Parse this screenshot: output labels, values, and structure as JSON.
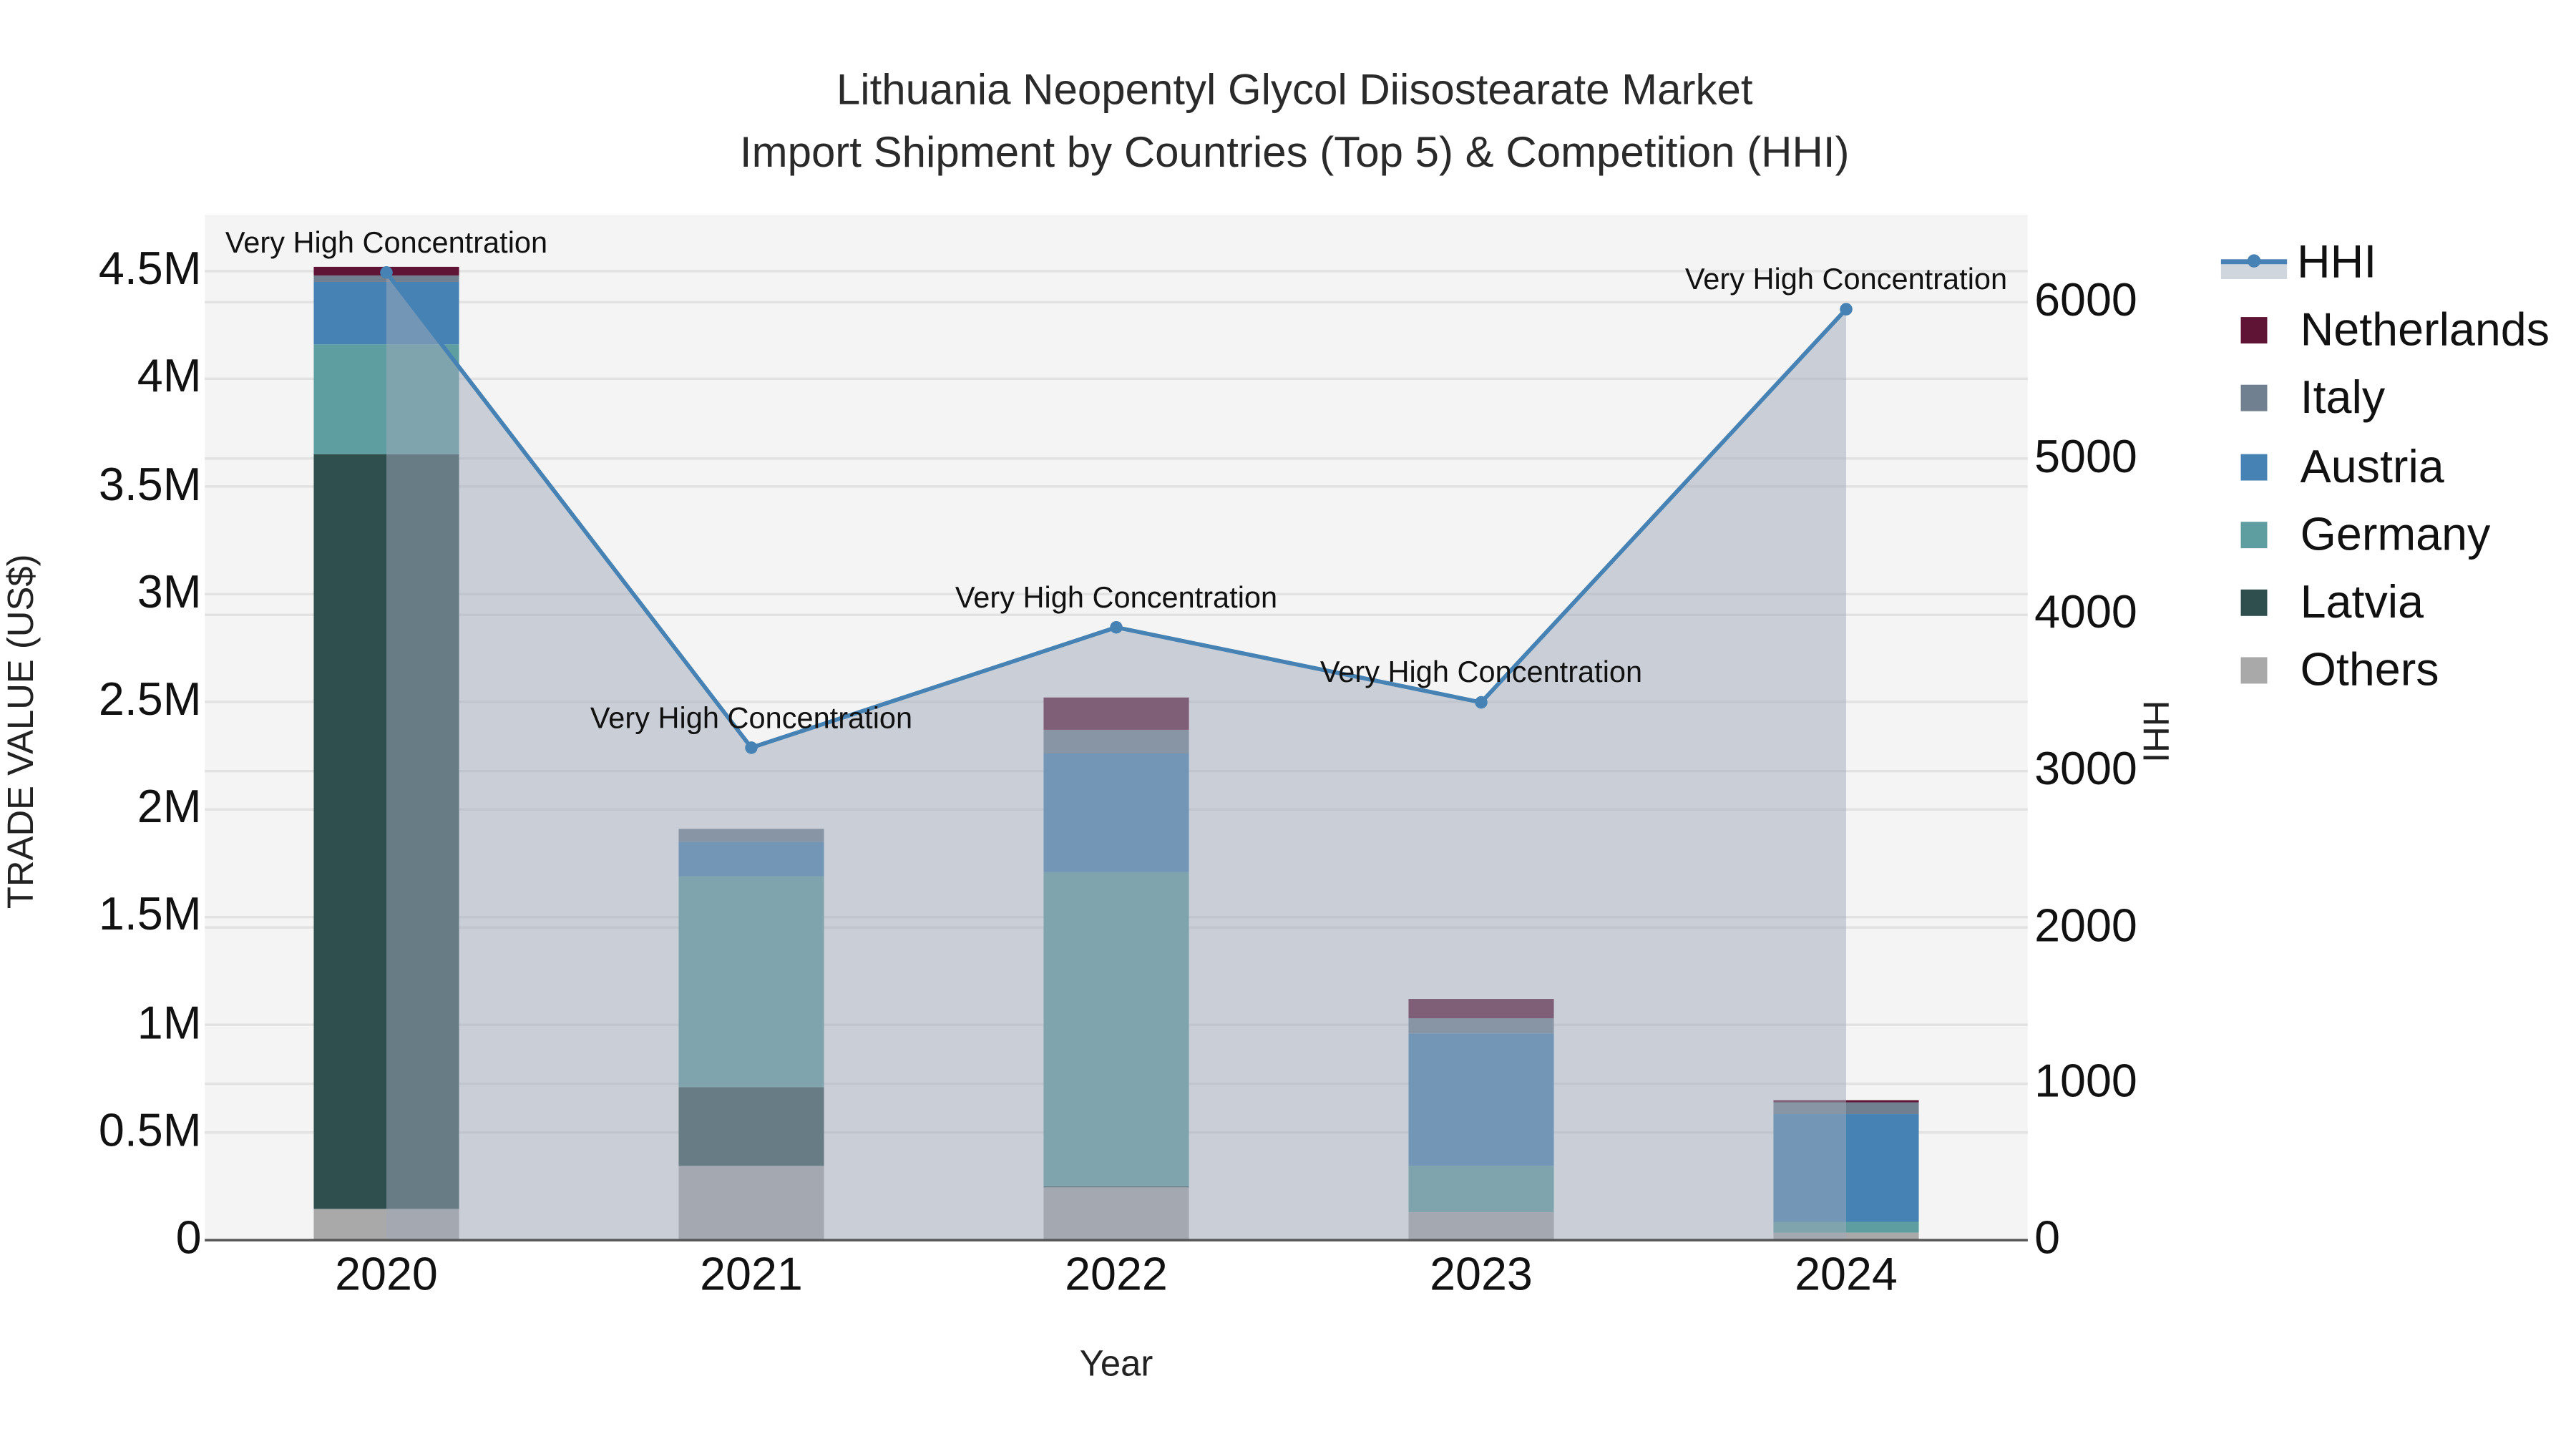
{
  "title": {
    "line1": "Lithuania Neopentyl Glycol Diisostearate Market",
    "line2": "Import Shipment by Countries (Top 5) & Competition (HHI)"
  },
  "axes": {
    "x_label": "Year",
    "y_left_label": "TRADE VALUE (US$)",
    "y_right_label": "HHI",
    "y_left_ticks": [
      "0",
      "0.5M",
      "1M",
      "1.5M",
      "2M",
      "2.5M",
      "3M",
      "3.5M",
      "4M",
      "4.5M"
    ],
    "y_right_ticks": [
      "0",
      "1000",
      "2000",
      "3000",
      "4000",
      "5000",
      "6000"
    ],
    "x_ticks": [
      "2020",
      "2021",
      "2022",
      "2023",
      "2024"
    ]
  },
  "legend": {
    "items": [
      {
        "label": "HHI",
        "color": "#4682b4",
        "type": "line"
      },
      {
        "label": "Netherlands",
        "color": "#5f1435",
        "type": "bar"
      },
      {
        "label": "Italy",
        "color": "#708090",
        "type": "bar"
      },
      {
        "label": "Austria",
        "color": "#4682b4",
        "type": "bar"
      },
      {
        "label": "Germany",
        "color": "#5f9ea0",
        "type": "bar"
      },
      {
        "label": "Latvia",
        "color": "#2f4f4f",
        "type": "bar"
      },
      {
        "label": "Others",
        "color": "#a9a9a9",
        "type": "bar"
      }
    ]
  },
  "annotations": [
    {
      "year": "2020",
      "text": "Very High Concentration"
    },
    {
      "year": "2021",
      "text": "Very High Concentration"
    },
    {
      "year": "2022",
      "text": "Very High Concentration"
    },
    {
      "year": "2023",
      "text": "Very High Concentration"
    },
    {
      "year": "2024",
      "text": "Very High Concentration"
    }
  ],
  "chart_data": {
    "type": "bar",
    "subtype": "stacked bar + line (secondary axis)",
    "title": "Lithuania Neopentyl Glycol Diisostearate Market — Import Shipment by Countries (Top 5) & Competition (HHI)",
    "xlabel": "Year",
    "ylabel": "TRADE VALUE (US$)",
    "y2label": "HHI",
    "categories": [
      "2020",
      "2021",
      "2022",
      "2023",
      "2024"
    ],
    "ylim": [
      0,
      4750000
    ],
    "y2lim": [
      0,
      6560
    ],
    "series": [
      {
        "name": "Others",
        "color": "#a9a9a9",
        "values": [
          145000,
          345000,
          245000,
          130000,
          35000
        ]
      },
      {
        "name": "Latvia",
        "color": "#2f4f4f",
        "values": [
          3505000,
          365000,
          5000,
          0,
          0
        ]
      },
      {
        "name": "Germany",
        "color": "#5f9ea0",
        "values": [
          510000,
          980000,
          1460000,
          215000,
          50000
        ]
      },
      {
        "name": "Austria",
        "color": "#4682b4",
        "values": [
          290000,
          160000,
          550000,
          615000,
          500000
        ]
      },
      {
        "name": "Italy",
        "color": "#708090",
        "values": [
          30000,
          60000,
          110000,
          70000,
          55000
        ]
      },
      {
        "name": "Netherlands",
        "color": "#5f1435",
        "values": [
          40000,
          0,
          150000,
          90000,
          10000
        ]
      }
    ],
    "line_series": {
      "name": "HHI",
      "color": "#4682b4",
      "axis": "right",
      "values": [
        6190,
        3150,
        3920,
        3440,
        5955
      ]
    },
    "annotations": [
      "Very High Concentration",
      "Very High Concentration",
      "Very High Concentration",
      "Very High Concentration",
      "Very High Concentration"
    ],
    "grid": true,
    "legend_position": "right"
  }
}
